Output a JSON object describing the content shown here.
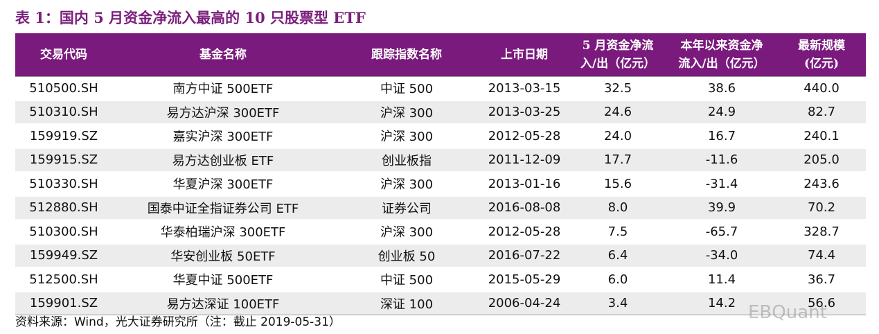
{
  "title": "表 1：国内 5 月资金净流入最高的 10 只股票型 ETF",
  "table": {
    "header": [
      [
        "交易代码"
      ],
      [
        "基金名称"
      ],
      [
        "跟踪指数名称"
      ],
      [
        "上市日期"
      ],
      [
        "5 月资金净流",
        "入/出（亿元）"
      ],
      [
        "本年以来资金净",
        "流入/出（亿元）"
      ],
      [
        "最新规模",
        "(亿元)"
      ]
    ],
    "rows": [
      [
        "510500.SH",
        "南方中证 500ETF",
        "中证 500",
        "2013-03-15",
        "32.5",
        "38.6",
        "440.0"
      ],
      [
        "510310.SH",
        "易方达沪深 300ETF",
        "沪深 300",
        "2013-03-25",
        "24.6",
        "24.9",
        "82.7"
      ],
      [
        "159919.SZ",
        "嘉实沪深 300ETF",
        "沪深 300",
        "2012-05-28",
        "24.0",
        "16.7",
        "240.1"
      ],
      [
        "159915.SZ",
        "易方达创业板 ETF",
        "创业板指",
        "2011-12-09",
        "17.7",
        "-11.6",
        "205.0"
      ],
      [
        "510330.SH",
        "华夏沪深 300ETF",
        "沪深 300",
        "2013-01-16",
        "15.6",
        "-31.4",
        "243.6"
      ],
      [
        "512880.SH",
        "国泰中证全指证券公司 ETF",
        "证券公司",
        "2016-08-08",
        "8.0",
        "39.9",
        "70.2"
      ],
      [
        "510300.SH",
        "华泰柏瑞沪深 300ETF",
        "沪深 300",
        "2012-05-28",
        "7.5",
        "-65.7",
        "328.7"
      ],
      [
        "159949.SZ",
        "华安创业板 50ETF",
        "创业板 50",
        "2016-07-22",
        "6.4",
        "-34.0",
        "74.4"
      ],
      [
        "512500.SH",
        "华夏中证 500ETF",
        "中证 500",
        "2015-05-29",
        "6.0",
        "11.4",
        "36.7"
      ],
      [
        "159901.SZ",
        "易方达深证 100ETF",
        "深证 100",
        "2006-04-24",
        "3.4",
        "14.2",
        "56.6"
      ]
    ]
  },
  "footnote": "资料来源：Wind，光大证券研究所（注：截止 2019-05-31）",
  "watermark": "EBQuant"
}
